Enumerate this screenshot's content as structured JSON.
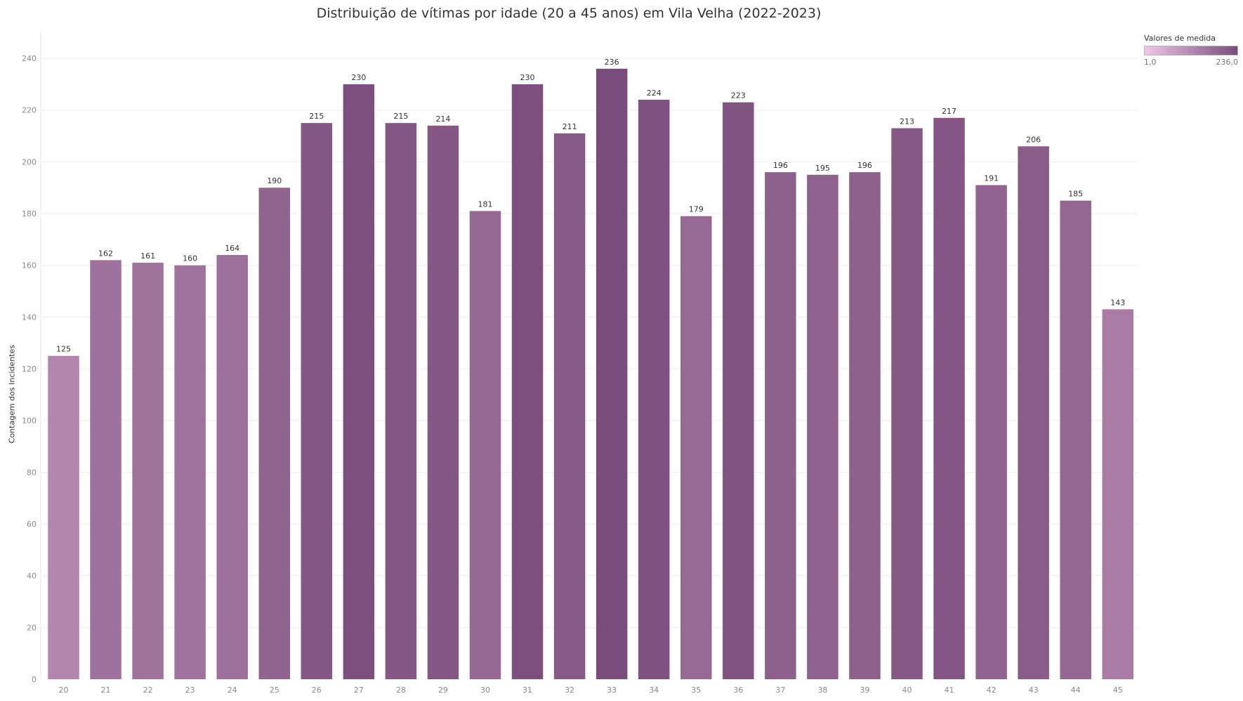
{
  "colors": {
    "low": "#f1c6e7",
    "high": "#7a4c7b"
  },
  "legend": {
    "title": "Valores de medida",
    "min_label": "1,0",
    "max_label": "236,0",
    "min_value": 1,
    "max_value": 236
  },
  "chart_data": {
    "type": "bar",
    "title": "Distribuição de vítimas por idade (20 a 45 anos) em Vila Velha (2022-2023)",
    "xlabel": "",
    "ylabel": "Contagem dos Incidentes",
    "ylim": [
      0,
      250
    ],
    "yticks": [
      0,
      20,
      40,
      60,
      80,
      100,
      120,
      140,
      160,
      180,
      200,
      220,
      240
    ],
    "grid": true,
    "legend_position": "top-right",
    "categories": [
      "20",
      "21",
      "22",
      "23",
      "24",
      "25",
      "26",
      "27",
      "28",
      "29",
      "30",
      "31",
      "32",
      "33",
      "34",
      "35",
      "36",
      "37",
      "38",
      "39",
      "40",
      "41",
      "42",
      "43",
      "44",
      "45"
    ],
    "values": [
      125,
      162,
      161,
      160,
      164,
      190,
      215,
      230,
      215,
      214,
      181,
      230,
      211,
      236,
      224,
      179,
      223,
      196,
      195,
      196,
      213,
      217,
      191,
      206,
      185,
      143
    ]
  }
}
